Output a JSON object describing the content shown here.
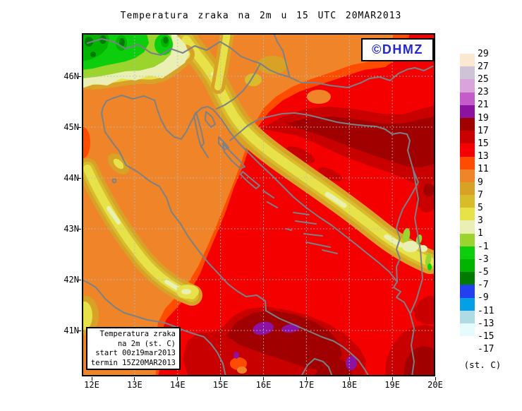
{
  "title": "Temperatura zraka na 2m u 15 UTC 20MAR2013",
  "watermark": {
    "label": "©DHMZ",
    "text_color": "#2328CC"
  },
  "info_box": {
    "lines": [
      "Temperatura zraka",
      "na 2m (st. C)",
      "start 00z19mar2013",
      "termin 15Z20MAR2013"
    ]
  },
  "axes": {
    "lat_labels": [
      "46N",
      "45N",
      "44N",
      "43N",
      "42N",
      "41N"
    ],
    "lon_labels": [
      "12E",
      "13E",
      "14E",
      "15E",
      "16E",
      "17E",
      "18E",
      "19E",
      "20E"
    ]
  },
  "legend": {
    "unit_label": "(st. C)",
    "boundary_labels": [
      "29",
      "27",
      "25",
      "23",
      "21",
      "19",
      "17",
      "15",
      "13",
      "11",
      "9",
      "7",
      "5",
      "3",
      "1",
      "-1",
      "-3",
      "-5",
      "-7",
      "-9",
      "-11",
      "-13",
      "-15",
      "-17"
    ],
    "cell_color_keys": [
      "cream",
      "lavender",
      "plum",
      "orchid",
      "purple",
      "maroon",
      "dark_red",
      "red",
      "orange_red",
      "orange",
      "gold",
      "dark_yellow",
      "yellow",
      "pale_yellow",
      "yellow_green",
      "green",
      "mid_green",
      "dark_green",
      "blue",
      "azure",
      "light_blue",
      "pale_cyan",
      "white"
    ]
  },
  "palette": {
    "cream": "#FBE8D0",
    "lavender": "#CFC3D7",
    "plum": "#D9A3DC",
    "orchid": "#C55ACB",
    "purple": "#8E12A2",
    "maroon": "#A00000",
    "dark_red": "#C80000",
    "red": "#F40000",
    "orange_red": "#FF4C00",
    "orange": "#F08428",
    "gold": "#D8A226",
    "dark_yellow": "#D8BC2C",
    "yellow": "#E8E24A",
    "pale_yellow": "#EAEFB4",
    "yellow_green": "#9AD42C",
    "green": "#0DCE0D",
    "mid_green": "#00B400",
    "dark_green": "#007C00",
    "blue": "#2340EE",
    "azure": "#049FE4",
    "light_blue": "#AFDCE4",
    "pale_cyan": "#E6FBFB",
    "white": "#FFFFFF",
    "coast_gray": "#7A8187",
    "grid_blue": "#AFBDCB"
  }
}
